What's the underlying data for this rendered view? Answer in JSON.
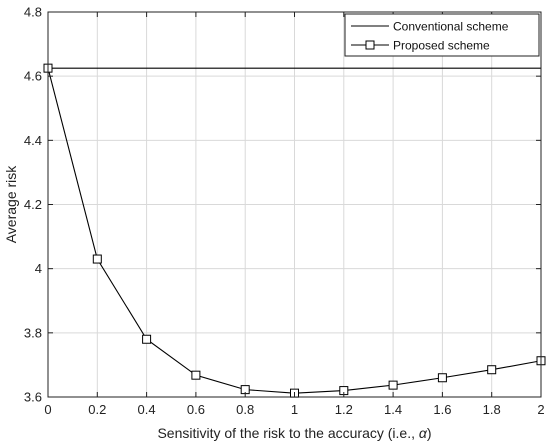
{
  "chart_data": {
    "type": "line",
    "xlabel_prefix": "Sensitivity of the risk to the accuracy (i.e., ",
    "xlabel_symbol": "α",
    "xlabel_suffix": ")",
    "ylabel": "Average risk",
    "xlim": [
      0,
      2
    ],
    "ylim": [
      3.6,
      4.8
    ],
    "xticks": [
      0,
      0.2,
      0.4,
      0.6,
      0.8,
      1,
      1.2,
      1.4,
      1.6,
      1.8,
      2
    ],
    "xtick_labels": [
      "0",
      "0.2",
      "0.4",
      "0.6",
      "0.8",
      "1",
      "1.2",
      "1.4",
      "1.6",
      "1.8",
      "2"
    ],
    "yticks": [
      3.6,
      3.8,
      4,
      4.2,
      4.4,
      4.6,
      4.8
    ],
    "ytick_labels": [
      "3.6",
      "3.8",
      "4",
      "4.2",
      "4.4",
      "4.6",
      "4.8"
    ],
    "grid": true,
    "legend_position": "top-right",
    "series": [
      {
        "name": "Conventional scheme",
        "marker": "none",
        "color": "#000000",
        "x": [
          0,
          2
        ],
        "y": [
          4.625,
          4.625
        ]
      },
      {
        "name": "Proposed scheme",
        "marker": "square",
        "color": "#000000",
        "x": [
          0,
          0.2,
          0.4,
          0.6,
          0.8,
          1,
          1.2,
          1.4,
          1.6,
          1.8,
          2
        ],
        "y": [
          4.625,
          4.03,
          3.78,
          3.668,
          3.623,
          3.612,
          3.62,
          3.637,
          3.66,
          3.685,
          3.713
        ]
      }
    ]
  }
}
